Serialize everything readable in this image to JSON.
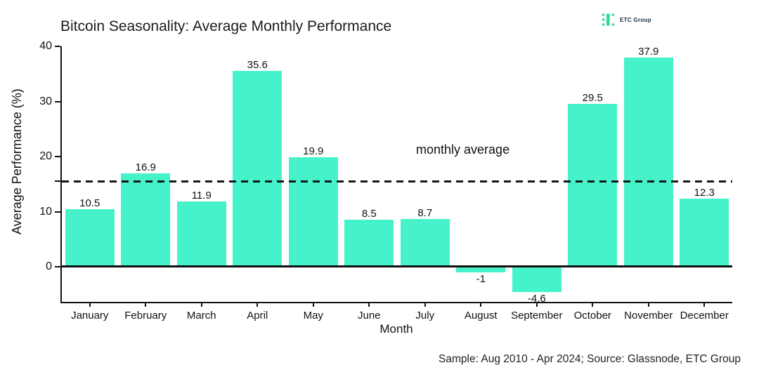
{
  "header": {
    "logo": {
      "text": "ETC Group",
      "icon_green": "#35d79f",
      "text_color": "#152a3d"
    }
  },
  "chart_data": {
    "type": "bar",
    "title": "Bitcoin Seasonality: Average Monthly Performance",
    "categories": [
      "January",
      "February",
      "March",
      "April",
      "May",
      "June",
      "July",
      "August",
      "September",
      "October",
      "November",
      "December"
    ],
    "values": [
      10.5,
      16.9,
      11.9,
      35.6,
      19.9,
      8.5,
      8.7,
      -1,
      -4.6,
      29.5,
      37.9,
      12.3
    ],
    "xlabel": "Month",
    "ylabel": "Average Performance (%)",
    "yticks": [
      0,
      10,
      20,
      30,
      40
    ],
    "ylim": [
      -7.5,
      40
    ],
    "grid": false,
    "legend": "none",
    "bar_color": "#45f2ca",
    "average_line": {
      "value": 15.5,
      "label": "monthly average",
      "style": "dashed",
      "color": "#151515"
    }
  },
  "footer": {
    "source": "Sample: Aug 2010 - Apr 2024; Source: Glassnode, ETC Group"
  }
}
